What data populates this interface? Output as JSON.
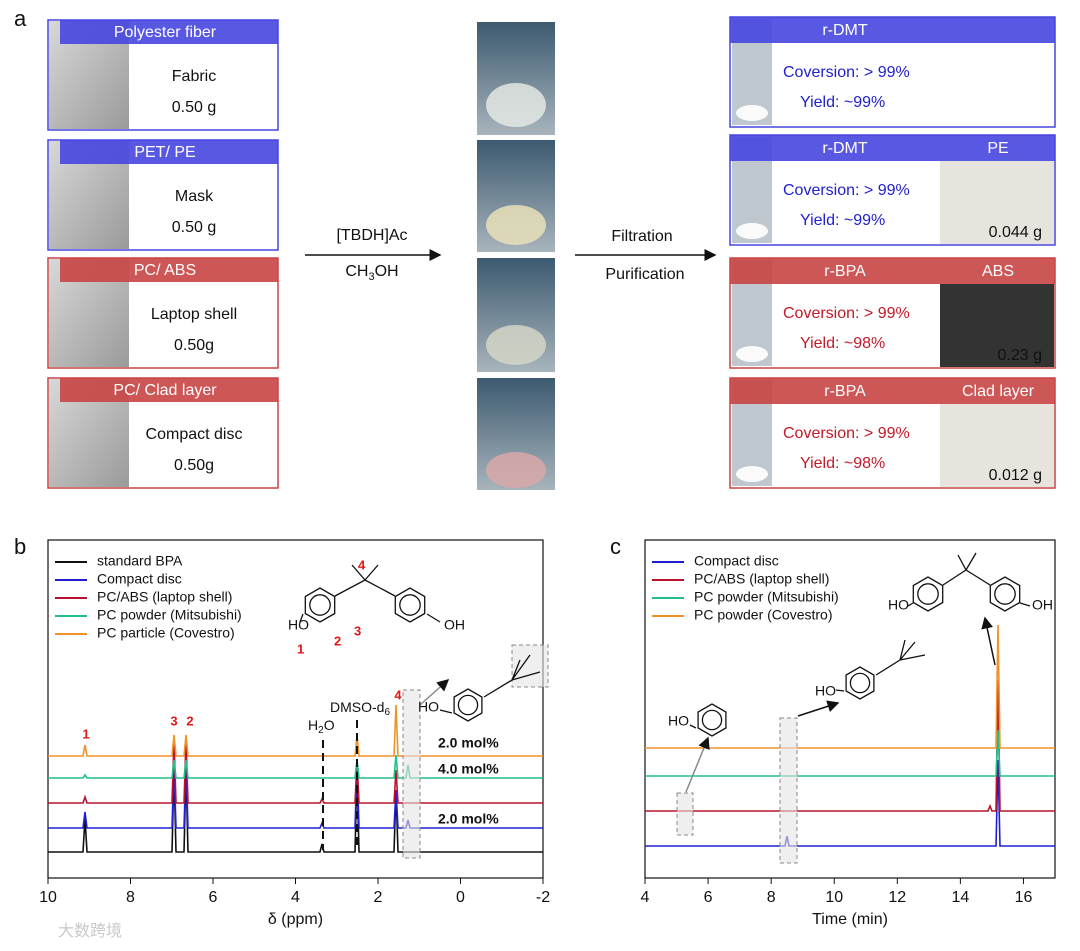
{
  "panel_a": {
    "label": "a",
    "inputs": [
      {
        "title": "Polyester fiber",
        "item": "Fabric",
        "mass": "0.50 g",
        "color": "#4646e0"
      },
      {
        "title": "PET/ PE",
        "item": "Mask",
        "mass": "0.50 g",
        "color": "#4646e0"
      },
      {
        "title": "PC/ ABS",
        "item": "Laptop shell",
        "mass": "0.50g",
        "color": "#c84444"
      },
      {
        "title": "PC/ Clad layer",
        "item": "Compact disc",
        "mass": "0.50g",
        "color": "#c84444"
      }
    ],
    "step1": {
      "reagent": "[TBDH]Ac",
      "solvent": [
        "CH",
        "3",
        "OH"
      ]
    },
    "step2": {
      "top": "Filtration",
      "bottom": "Purification"
    },
    "products": [
      {
        "title": "r-DMT",
        "conversion": "Coversion: > 99%",
        "yield": "Yield: ~99%",
        "color": "#4646e0",
        "text_color": "#2020cc"
      },
      {
        "title": "r-DMT",
        "byproduct": "PE",
        "conversion": "Coversion: > 99%",
        "yield": "Yield: ~99%",
        "mass": "0.044 g",
        "color": "#4646e0",
        "text_color": "#2020cc"
      },
      {
        "title": "r-BPA",
        "byproduct": "ABS",
        "conversion": "Coversion: > 99%",
        "yield": "Yield: ~98%",
        "mass": "0.23 g",
        "color": "#c84444",
        "text_color": "#c01a28"
      },
      {
        "title": "r-BPA",
        "byproduct": "Clad layer",
        "conversion": "Coversion: > 99%",
        "yield": "Yield: ~98%",
        "mass": "0.012 g",
        "color": "#c84444",
        "text_color": "#c01a28"
      }
    ]
  },
  "panel_b": {
    "label": "b",
    "xlabel": "δ (ppm)",
    "xlim": [
      10,
      -2
    ],
    "xticks": [
      10,
      8,
      6,
      4,
      2,
      0,
      -2
    ],
    "legend": [
      {
        "name": "standard BPA",
        "color": "#111111"
      },
      {
        "name": "Compact disc",
        "color": "#2020d0"
      },
      {
        "name": "PC/ABS (laptop shell)",
        "color": "#b8122c"
      },
      {
        "name": "PC powder (Mitsubishi)",
        "color": "#20c08a"
      },
      {
        "name": "PC particle (Covestro)",
        "color": "#f0922c"
      }
    ],
    "peak_labels": [
      "1",
      "3",
      "2",
      "4"
    ],
    "water": [
      "H",
      "2",
      "O"
    ],
    "dmso": [
      "DMSO-d",
      "6"
    ],
    "contents": [
      "2.0 mol%",
      "4.0 mol%",
      "2.0 mol%"
    ],
    "structure": {
      "ho": "HO",
      "oh": "OH",
      "positions": [
        "1",
        "2",
        "3",
        "4"
      ]
    },
    "impurity_ho": "HO"
  },
  "panel_c": {
    "label": "c",
    "xlabel": "Time (min)",
    "xlim": [
      4,
      17
    ],
    "xticks": [
      4,
      6,
      8,
      10,
      12,
      14,
      16
    ],
    "legend": [
      {
        "name": "Compact disc",
        "color": "#2020d0"
      },
      {
        "name": "PC/ABS (laptop shell)",
        "color": "#b8122c"
      },
      {
        "name": "PC powder (Mitsubishi)",
        "color": "#20c08a"
      },
      {
        "name": "PC powder (Covestro)",
        "color": "#f0922c"
      }
    ],
    "phenol_ho": "HO",
    "tbu_ho": "HO",
    "bpa": {
      "ho": "HO",
      "oh": "OH"
    }
  },
  "watermark": "大数跨境"
}
